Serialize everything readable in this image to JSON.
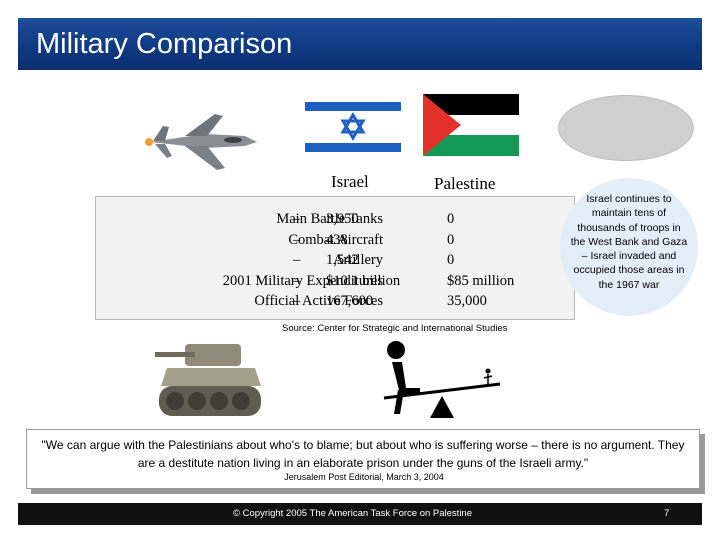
{
  "slide": {
    "title": "Military Comparison",
    "columns": {
      "israel": "Israel",
      "palestine": "Palestine"
    },
    "stats": {
      "labels": [
        "Main Battle Tanks",
        "Combat Aircraft",
        "Artillery",
        "2001 Military Expenditures",
        "Official Active Forces"
      ],
      "dash": "–",
      "israel": [
        "3,950",
        "438",
        "1,542",
        "$10.1 billion",
        "167,600"
      ],
      "palestine": [
        "0",
        "0",
        "0",
        "$85 million",
        "35,000"
      ]
    },
    "callout": "Israel continues to maintain tens of thousands of troops in the West Bank and Gaza – Israel invaded and occupied those areas in the 1967 war",
    "source": "Source: Center for Strategic and International Studies",
    "quote": {
      "text": "\"We can argue with the Palestinians about who's to blame; but about who is suffering worse – there is no argument. They are a destitute nation living in an elaborate prison under the guns of the Israeli army.\"",
      "attribution": "Jerusalem Post Editorial, March 3, 2004"
    },
    "footer": {
      "copyright": "© Copyright 2005 The American Task Force on Palestine",
      "page_number": "7"
    },
    "icons": [
      "fighter-jet-image",
      "israel-flag",
      "palestine-flag",
      "tank-image",
      "seesaw-figure-icon"
    ],
    "colors": {
      "title_bar": "#0f3a82",
      "israel_blue": "#1f5fbf",
      "palestine_red": "#e4312b",
      "palestine_green": "#149954",
      "callout_bg": "#e4eef9"
    }
  }
}
